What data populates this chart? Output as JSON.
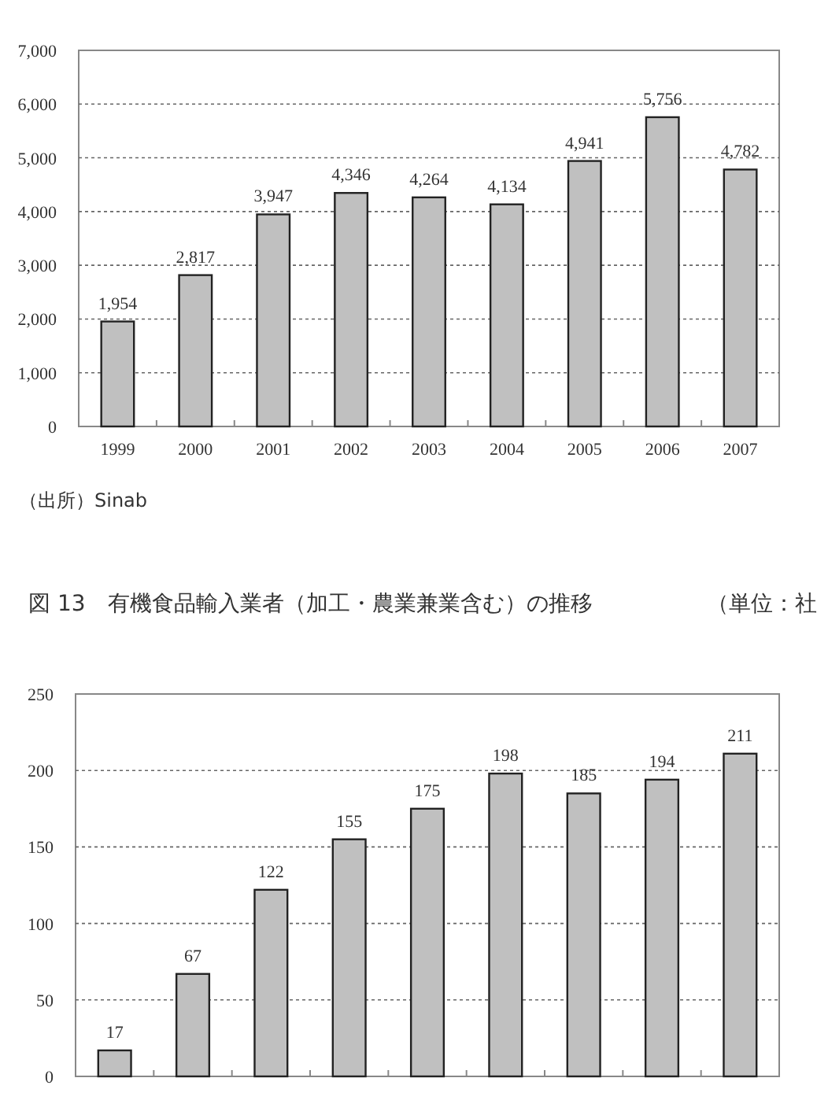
{
  "chart_data": [
    {
      "type": "bar",
      "categories": [
        "1999",
        "2000",
        "2001",
        "2002",
        "2003",
        "2004",
        "2005",
        "2006",
        "2007"
      ],
      "values": [
        1954,
        2817,
        3947,
        4346,
        4264,
        4134,
        4941,
        5756,
        4782
      ],
      "color": "#c0c0c0",
      "value_labels": [
        "1,954",
        "2,817",
        "3,947",
        "4,346",
        "4,264",
        "4,134",
        "4,941",
        "5,756",
        "4,782"
      ],
      "ylim": [
        0,
        7000
      ],
      "yticks": [
        0,
        {
          "value": 1000,
          "label": "1,000"
        },
        {
          "value": 2000,
          "label": "2,000"
        },
        {
          "value": 3000,
          "label": "3,000"
        },
        {
          "value": 4000,
          "label": "4,000"
        },
        {
          "value": 5000,
          "label": "5,000"
        },
        {
          "value": 6000,
          "label": "6,000"
        },
        {
          "value": 7000,
          "label": "7,000"
        }
      ],
      "grid": "y",
      "annotations": [
        "（出所）Sinab"
      ]
    },
    {
      "type": "bar",
      "title": "図 13　有機食品輸入業者（加工・農業兼業含む）の推移",
      "subtitle": "（単位：社",
      "categories": [
        null,
        null,
        null,
        null,
        null,
        null,
        null,
        null,
        null
      ],
      "values": [
        17,
        67,
        122,
        155,
        175,
        198,
        185,
        194,
        211
      ],
      "color": "#c0c0c0",
      "data_labels": true,
      "ylim": [
        0,
        250
      ],
      "yticks": [
        0,
        50,
        100,
        150,
        200,
        250
      ],
      "grid": "y"
    }
  ]
}
